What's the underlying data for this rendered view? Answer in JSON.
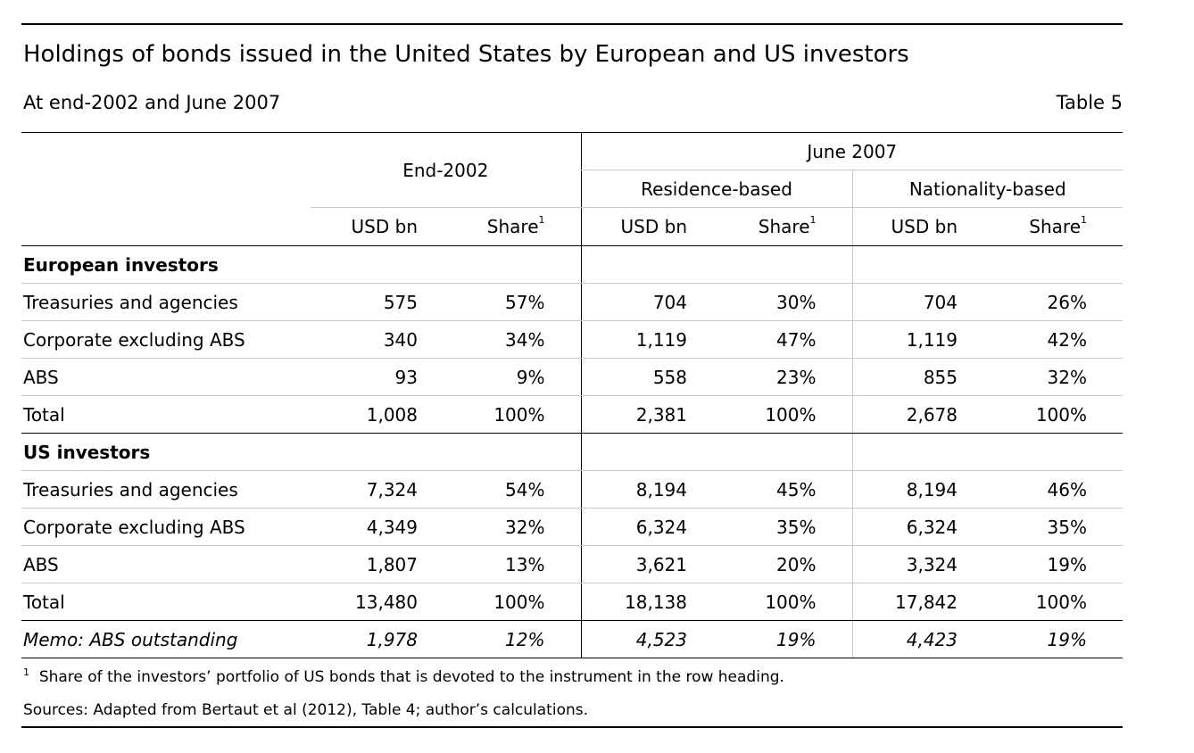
{
  "title": "Holdings of bonds issued in the United States by European and US investors",
  "subtitle": "At end-2002 and June 2007",
  "table_number": "Table 5",
  "header": {
    "end2002": "End-2002",
    "june2007": "June 2007",
    "residence": "Residence-based",
    "nationality": "Nationality-based",
    "usd": "USD bn",
    "share": "Share",
    "share_mark": "1"
  },
  "sections": [
    {
      "name": "European investors",
      "rows": [
        {
          "label": "Treasuries and agencies",
          "v": [
            "575",
            "57%",
            "704",
            "30%",
            "704",
            "26%"
          ]
        },
        {
          "label": "Corporate excluding ABS",
          "v": [
            "340",
            "34%",
            "1,119",
            "47%",
            "1,119",
            "42%"
          ]
        },
        {
          "label": "ABS",
          "v": [
            "93",
            "9%",
            "558",
            "23%",
            "855",
            "32%"
          ]
        },
        {
          "label": "Total",
          "v": [
            "1,008",
            "100%",
            "2,381",
            "100%",
            "2,678",
            "100%"
          ]
        }
      ]
    },
    {
      "name": "US investors",
      "rows": [
        {
          "label": "Treasuries and agencies",
          "v": [
            "7,324",
            "54%",
            "8,194",
            "45%",
            "8,194",
            "46%"
          ]
        },
        {
          "label": "Corporate excluding ABS",
          "v": [
            "4,349",
            "32%",
            "6,324",
            "35%",
            "6,324",
            "35%"
          ]
        },
        {
          "label": "ABS",
          "v": [
            "1,807",
            "13%",
            "3,621",
            "20%",
            "3,324",
            "19%"
          ]
        },
        {
          "label": "Total",
          "v": [
            "13,480",
            "100%",
            "18,138",
            "100%",
            "17,842",
            "100%"
          ]
        }
      ]
    }
  ],
  "memo": {
    "label": "Memo: ABS outstanding",
    "v": [
      "1,978",
      "12%",
      "4,523",
      "19%",
      "4,423",
      "19%"
    ]
  },
  "footnote_mark": "1",
  "footnote": "Share of the investors’ portfolio of US bonds that is devoted to the instrument in the row heading.",
  "sources": "Sources: Adapted from Bertaut et al (2012), Table 4; author’s calculations."
}
